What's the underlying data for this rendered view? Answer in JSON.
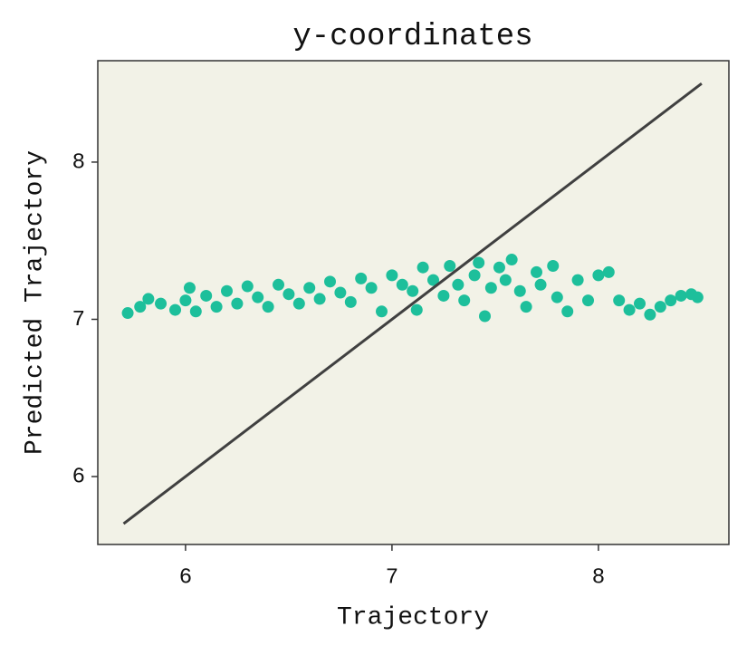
{
  "chart_data": {
    "type": "scatter",
    "title": "y-coordinates",
    "xlabel": "Trajectory",
    "ylabel": "Predicted Trajectory",
    "xlim": [
      5.575,
      8.632
    ],
    "ylim": [
      5.568,
      8.645
    ],
    "xticks": [
      6,
      7,
      8
    ],
    "yticks": [
      6,
      7,
      8
    ],
    "background": "#f2f2e7",
    "series": [
      {
        "type": "scatter",
        "color": "#1dbf9b",
        "x": [
          5.72,
          5.78,
          5.82,
          5.88,
          5.95,
          6.0,
          6.05,
          6.02,
          6.1,
          6.15,
          6.2,
          6.25,
          6.3,
          6.35,
          6.4,
          6.45,
          6.5,
          6.55,
          6.6,
          6.65,
          6.7,
          6.75,
          6.8,
          6.85,
          6.9,
          6.95,
          7.0,
          7.05,
          7.1,
          7.12,
          7.15,
          7.2,
          7.25,
          7.28,
          7.32,
          7.35,
          7.4,
          7.42,
          7.45,
          7.48,
          7.52,
          7.55,
          7.58,
          7.62,
          7.65,
          7.7,
          7.72,
          7.78,
          7.8,
          7.85,
          7.9,
          7.95,
          8.0,
          8.05,
          8.1,
          8.15,
          8.2,
          8.25,
          8.3,
          8.35,
          8.4,
          8.45,
          8.48
        ],
        "values": [
          7.04,
          7.08,
          7.13,
          7.1,
          7.06,
          7.12,
          7.05,
          7.2,
          7.15,
          7.08,
          7.18,
          7.1,
          7.21,
          7.14,
          7.08,
          7.22,
          7.16,
          7.1,
          7.2,
          7.13,
          7.24,
          7.17,
          7.11,
          7.26,
          7.2,
          7.05,
          7.28,
          7.22,
          7.18,
          7.06,
          7.33,
          7.25,
          7.15,
          7.34,
          7.22,
          7.12,
          7.28,
          7.36,
          7.02,
          7.2,
          7.33,
          7.25,
          7.38,
          7.18,
          7.08,
          7.3,
          7.22,
          7.34,
          7.14,
          7.05,
          7.25,
          7.12,
          7.28,
          7.3,
          7.12,
          7.06,
          7.1,
          7.03,
          7.08,
          7.12,
          7.15,
          7.16,
          7.14
        ]
      },
      {
        "type": "line",
        "color": "#404040",
        "x": [
          5.7,
          8.5
        ],
        "values": [
          5.7,
          8.5
        ]
      }
    ]
  }
}
